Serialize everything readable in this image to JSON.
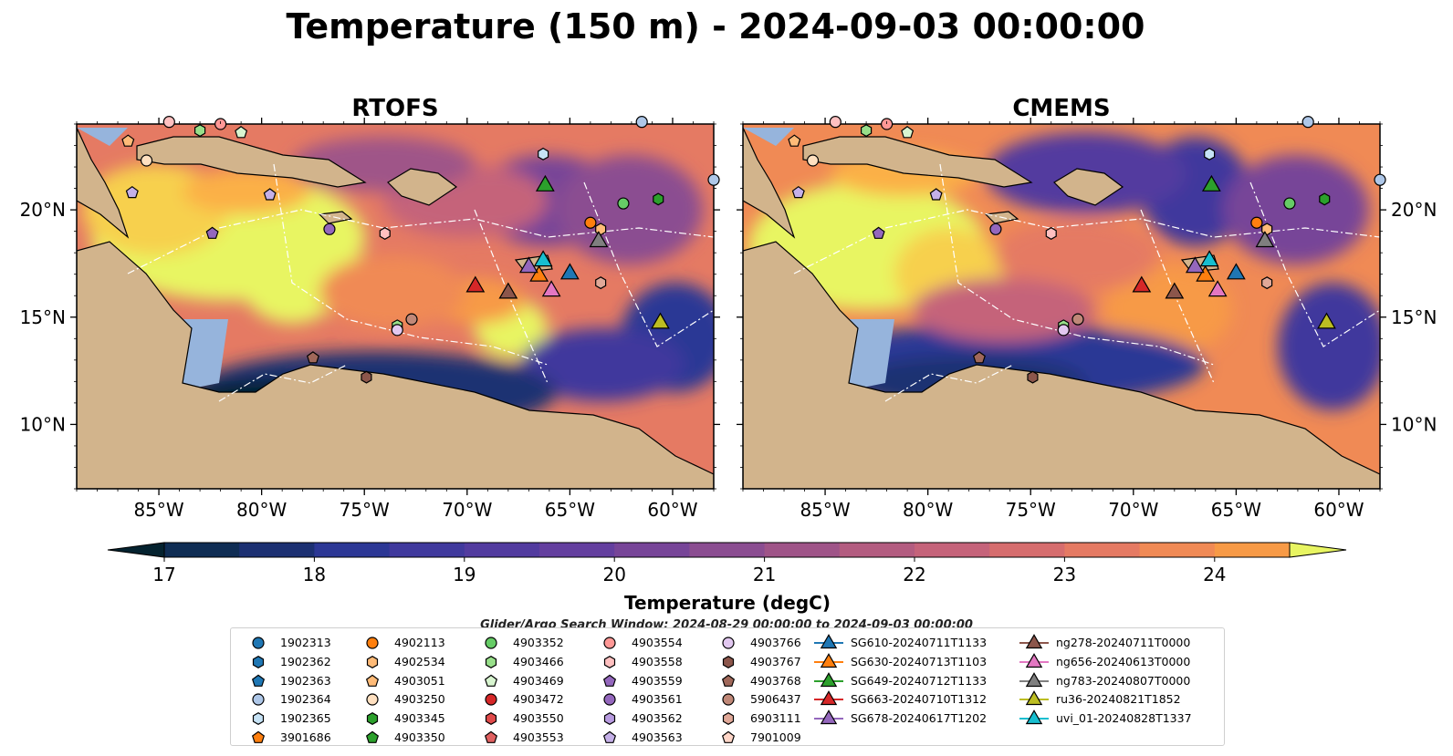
{
  "figure": {
    "title": "Temperature (150 m) - 2024-09-03 00:00:00",
    "search_window": "Glider/Argo Search Window: 2024-08-29 00:00:00 to 2024-09-03 00:00:00"
  },
  "colors": {
    "land": "#d2b48c",
    "shelf": "#96b4dc",
    "deep": "#04222f",
    "white_lines": "#ffffff"
  },
  "chart_data": [
    {
      "type": "heatmap",
      "title": "RTOFS",
      "x_ticks": [
        -85,
        -80,
        -75,
        -70,
        -65,
        -60
      ],
      "x_tick_labels": [
        "85°W",
        "80°W",
        "75°W",
        "70°W",
        "65°W",
        "60°W"
      ],
      "y_ticks": [
        10,
        15,
        20
      ],
      "y_tick_labels": [
        "10°N",
        "15°N",
        "20°N"
      ],
      "xlim": [
        -89,
        -58
      ],
      "ylim": [
        7,
        24
      ],
      "value_range": [
        17,
        24.5
      ]
    },
    {
      "type": "heatmap",
      "title": "CMEMS",
      "x_ticks": [
        -85,
        -80,
        -75,
        -70,
        -65,
        -60
      ],
      "x_tick_labels": [
        "85°W",
        "80°W",
        "75°W",
        "70°W",
        "65°W",
        "60°W"
      ],
      "y_ticks": [
        10,
        15,
        20
      ],
      "y_tick_labels": [
        "10°N",
        "15°N",
        "20°N"
      ],
      "xlim": [
        -89,
        -58
      ],
      "ylim": [
        7,
        24
      ],
      "value_range": [
        17,
        24.5
      ]
    }
  ],
  "colorbar": {
    "label": "Temperature (degC)",
    "ticks": [
      17,
      18,
      19,
      20,
      21,
      22,
      23,
      24
    ],
    "tick_labels": [
      "17",
      "18",
      "19",
      "20",
      "21",
      "22",
      "23",
      "24"
    ],
    "min": 16.5,
    "max": 24.5,
    "step": 0.5,
    "colors": [
      "#04222f",
      "#0f2d54",
      "#1c3072",
      "#2c3795",
      "#40399d",
      "#523b9f",
      "#643f9f",
      "#774598",
      "#8b4d91",
      "#9f5488",
      "#b35c80",
      "#c5637a",
      "#d66d6e",
      "#e57a63",
      "#f08a55",
      "#f79a46",
      "#fbb046",
      "#f7d04e",
      "#e8f562"
    ]
  },
  "legend": {
    "columns": [
      [
        {
          "label": "1902313",
          "marker": "circle",
          "color": "#1f77b4"
        },
        {
          "label": "1902362",
          "marker": "hexagon",
          "color": "#1f77b4"
        },
        {
          "label": "1902363",
          "marker": "pentagon",
          "color": "#1f77b4"
        },
        {
          "label": "1902364",
          "marker": "circle",
          "color": "#aec7e8"
        },
        {
          "label": "1902365",
          "marker": "hexagon",
          "color": "#c6e2f5"
        },
        {
          "label": "3901686",
          "marker": "pentagon",
          "color": "#ff7f0e"
        }
      ],
      [
        {
          "label": "4902113",
          "marker": "circle",
          "color": "#ff7f0e"
        },
        {
          "label": "4902534",
          "marker": "hexagon",
          "color": "#ffbb78"
        },
        {
          "label": "4903051",
          "marker": "pentagon",
          "color": "#ffbb78"
        },
        {
          "label": "4903250",
          "marker": "circle",
          "color": "#ffe0c0"
        },
        {
          "label": "4903345",
          "marker": "hexagon",
          "color": "#2ca02c"
        },
        {
          "label": "4903350",
          "marker": "pentagon",
          "color": "#2ca02c"
        }
      ],
      [
        {
          "label": "4903352",
          "marker": "circle",
          "color": "#66cc66"
        },
        {
          "label": "4903466",
          "marker": "hexagon",
          "color": "#98df8a"
        },
        {
          "label": "4903469",
          "marker": "pentagon",
          "color": "#d8f5d0"
        },
        {
          "label": "4903472",
          "marker": "circle",
          "color": "#d62728"
        },
        {
          "label": "4903550",
          "marker": "hexagon",
          "color": "#e04a4a"
        },
        {
          "label": "4903553",
          "marker": "pentagon",
          "color": "#e06060"
        }
      ],
      [
        {
          "label": "4903554",
          "marker": "circle",
          "color": "#ff9896"
        },
        {
          "label": "4903558",
          "marker": "hexagon",
          "color": "#ffc0c0"
        },
        {
          "label": "4903559",
          "marker": "pentagon",
          "color": "#9467bd"
        },
        {
          "label": "4903561",
          "marker": "circle",
          "color": "#9467bd"
        },
        {
          "label": "4903562",
          "marker": "hexagon",
          "color": "#b89be0"
        },
        {
          "label": "4903563",
          "marker": "pentagon",
          "color": "#c5b0e8"
        }
      ],
      [
        {
          "label": "4903766",
          "marker": "circle",
          "color": "#e2c8f0"
        },
        {
          "label": "4903767",
          "marker": "hexagon",
          "color": "#8c564b"
        },
        {
          "label": "4903768",
          "marker": "pentagon",
          "color": "#a0685a"
        },
        {
          "label": "5906437",
          "marker": "circle",
          "color": "#c08878"
        },
        {
          "label": "6903111",
          "marker": "hexagon",
          "color": "#e0a898"
        },
        {
          "label": "7901009",
          "marker": "pentagon",
          "color": "#ffd6c8"
        }
      ],
      [
        {
          "label": "SG610-20240711T1133",
          "marker": "triangle-line",
          "color": "#1f77b4"
        },
        {
          "label": "SG630-20240713T1103",
          "marker": "triangle-line",
          "color": "#ff7f0e"
        },
        {
          "label": "SG649-20240712T1133",
          "marker": "triangle-line",
          "color": "#2ca02c"
        },
        {
          "label": "SG663-20240710T1312",
          "marker": "triangle-line",
          "color": "#d62728"
        },
        {
          "label": "SG678-20240617T1202",
          "marker": "triangle-line",
          "color": "#9467bd"
        }
      ],
      [
        {
          "label": "ng278-20240711T0000",
          "marker": "triangle-line",
          "color": "#8c564b"
        },
        {
          "label": "ng656-20240613T0000",
          "marker": "triangle-line",
          "color": "#e377c2"
        },
        {
          "label": "ng783-20240807T0000",
          "marker": "triangle-line",
          "color": "#7f7f7f"
        },
        {
          "label": "ru36-20240821T1852",
          "marker": "triangle-line",
          "color": "#bcbd22"
        },
        {
          "label": "uvi_01-20240828T1337",
          "marker": "triangle-line",
          "color": "#17becf"
        }
      ]
    ]
  },
  "markers": {
    "gliders": [
      {
        "lon": -69.6,
        "lat": 16.5,
        "color": "#d62728"
      },
      {
        "lon": -68.0,
        "lat": 16.2,
        "color": "#8c564b"
      },
      {
        "lon": -66.5,
        "lat": 17.0,
        "color": "#ff7f0e"
      },
      {
        "lon": -66.3,
        "lat": 17.7,
        "color": "#17becf"
      },
      {
        "lon": -67.0,
        "lat": 17.4,
        "color": "#9467bd"
      },
      {
        "lon": -65.9,
        "lat": 16.3,
        "color": "#e377c2"
      },
      {
        "lon": -65.0,
        "lat": 17.1,
        "color": "#1f77b4"
      },
      {
        "lon": -63.6,
        "lat": 18.6,
        "color": "#7f7f7f"
      },
      {
        "lon": -66.2,
        "lat": 21.2,
        "color": "#2ca02c"
      },
      {
        "lon": -60.6,
        "lat": 14.8,
        "color": "#bcbd22"
      }
    ],
    "argo": [
      {
        "lon": -86.5,
        "lat": 23.2,
        "shape": "pentagon",
        "color": "#ffbb78"
      },
      {
        "lon": -85.6,
        "lat": 22.3,
        "shape": "circle",
        "color": "#ffe0c0"
      },
      {
        "lon": -83.0,
        "lat": 23.7,
        "shape": "hexagon",
        "color": "#98df8a"
      },
      {
        "lon": -82.0,
        "lat": 24.0,
        "shape": "circle",
        "color": "#ff9896"
      },
      {
        "lon": -81.0,
        "lat": 23.6,
        "shape": "pentagon",
        "color": "#d8f5d0"
      },
      {
        "lon": -84.5,
        "lat": 24.1,
        "shape": "circle",
        "color": "#ffc0c0"
      },
      {
        "lon": -86.3,
        "lat": 20.8,
        "shape": "pentagon",
        "color": "#c5b0e8"
      },
      {
        "lon": -82.4,
        "lat": 18.9,
        "shape": "pentagon",
        "color": "#9467bd"
      },
      {
        "lon": -79.6,
        "lat": 20.7,
        "shape": "pentagon",
        "color": "#c5b0e8"
      },
      {
        "lon": -76.7,
        "lat": 19.1,
        "shape": "circle",
        "color": "#9467bd"
      },
      {
        "lon": -74.0,
        "lat": 18.9,
        "shape": "hexagon",
        "color": "#ffc0c0"
      },
      {
        "lon": -66.3,
        "lat": 22.6,
        "shape": "hexagon",
        "color": "#c6e2f5"
      },
      {
        "lon": -62.4,
        "lat": 20.3,
        "shape": "circle",
        "color": "#66cc66"
      },
      {
        "lon": -60.7,
        "lat": 20.5,
        "shape": "hexagon",
        "color": "#2ca02c"
      },
      {
        "lon": -64.0,
        "lat": 19.4,
        "shape": "circle",
        "color": "#ff7f0e"
      },
      {
        "lon": -63.5,
        "lat": 19.1,
        "shape": "hexagon",
        "color": "#ffbb78"
      },
      {
        "lon": -63.5,
        "lat": 16.6,
        "shape": "hexagon",
        "color": "#e0a898"
      },
      {
        "lon": -73.4,
        "lat": 14.6,
        "shape": "hexagon",
        "color": "#98df8a"
      },
      {
        "lon": -73.4,
        "lat": 14.4,
        "shape": "circle",
        "color": "#e2c8f0"
      },
      {
        "lon": -72.7,
        "lat": 14.9,
        "shape": "circle",
        "color": "#c08878"
      },
      {
        "lon": -77.5,
        "lat": 13.1,
        "shape": "pentagon",
        "color": "#a0685a"
      },
      {
        "lon": -74.9,
        "lat": 12.2,
        "shape": "hexagon",
        "color": "#8c564b"
      },
      {
        "lon": -58.0,
        "lat": 21.4,
        "shape": "circle",
        "color": "#aec7e8"
      },
      {
        "lon": -61.5,
        "lat": 24.1,
        "shape": "circle",
        "color": "#aec7e8"
      }
    ]
  }
}
